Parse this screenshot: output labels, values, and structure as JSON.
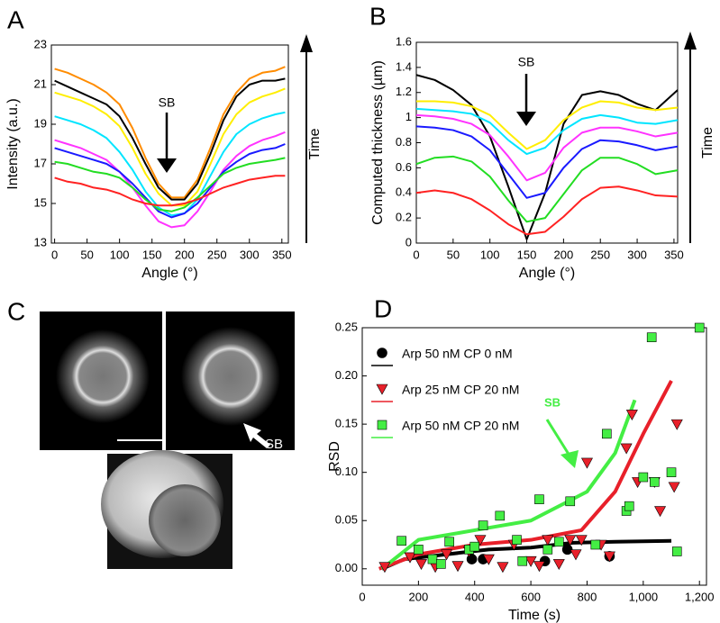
{
  "chart_data": [
    {
      "panel": "A",
      "type": "line",
      "xlabel": "Angle (°)",
      "ylabel": "Intensity (a.u.)",
      "annotation": "SB",
      "side_label": "Time",
      "xlim": [
        -5,
        360
      ],
      "xticks": [
        0,
        50,
        100,
        150,
        200,
        250,
        300,
        350
      ],
      "ylim": [
        13,
        23
      ],
      "yticks": [
        13,
        15,
        17,
        19,
        21,
        23
      ],
      "x": [
        0,
        20,
        40,
        60,
        80,
        100,
        120,
        140,
        160,
        180,
        200,
        220,
        240,
        260,
        280,
        300,
        320,
        340,
        355
      ],
      "series": [
        {
          "color": "#ff8c00",
          "values": [
            21.8,
            21.6,
            21.3,
            21.0,
            20.6,
            20.0,
            18.8,
            17.3,
            16.0,
            15.3,
            15.3,
            16.2,
            17.8,
            19.5,
            20.6,
            21.3,
            21.6,
            21.7,
            21.9
          ]
        },
        {
          "color": "#000000",
          "values": [
            21.2,
            20.9,
            20.6,
            20.3,
            20.0,
            19.4,
            18.3,
            17.0,
            15.8,
            15.2,
            15.2,
            16.0,
            17.5,
            19.2,
            20.4,
            21.0,
            21.2,
            21.2,
            21.3
          ]
        },
        {
          "color": "#ffee00",
          "values": [
            20.6,
            20.4,
            20.2,
            19.9,
            19.5,
            18.9,
            17.8,
            16.5,
            15.5,
            14.9,
            14.9,
            15.6,
            17.0,
            18.5,
            19.5,
            20.1,
            20.4,
            20.6,
            20.8
          ]
        },
        {
          "color": "#00e5ff",
          "values": [
            19.4,
            19.2,
            19.0,
            18.7,
            18.3,
            17.6,
            16.7,
            15.6,
            14.8,
            14.4,
            14.5,
            15.2,
            16.4,
            17.6,
            18.5,
            19.0,
            19.3,
            19.5,
            19.6
          ]
        },
        {
          "color": "#ff33ff",
          "values": [
            18.2,
            18.0,
            17.8,
            17.5,
            17.2,
            16.6,
            15.8,
            14.9,
            14.1,
            13.8,
            13.9,
            14.6,
            15.6,
            16.7,
            17.4,
            17.9,
            18.2,
            18.4,
            18.6
          ]
        },
        {
          "color": "#1a1aff",
          "values": [
            17.8,
            17.6,
            17.4,
            17.2,
            17.0,
            16.6,
            16.0,
            15.3,
            14.6,
            14.3,
            14.5,
            15.0,
            15.8,
            16.6,
            17.1,
            17.5,
            17.7,
            17.8,
            18.0
          ]
        },
        {
          "color": "#22dd22",
          "values": [
            17.1,
            17.0,
            16.8,
            16.6,
            16.5,
            16.3,
            15.8,
            15.2,
            14.7,
            14.6,
            14.8,
            15.3,
            15.9,
            16.5,
            16.8,
            17.0,
            17.1,
            17.2,
            17.3
          ]
        },
        {
          "color": "#ff2222",
          "values": [
            16.3,
            16.1,
            16.0,
            15.8,
            15.7,
            15.5,
            15.2,
            15.0,
            14.9,
            14.9,
            15.0,
            15.2,
            15.5,
            15.8,
            16.0,
            16.2,
            16.3,
            16.4,
            16.4
          ]
        }
      ]
    },
    {
      "panel": "B",
      "type": "line",
      "xlabel": "Angle (°)",
      "ylabel": "Computed thickness (µm)",
      "annotation": "SB",
      "side_label": "Time",
      "xlim": [
        0,
        355
      ],
      "xticks": [
        0,
        50,
        100,
        150,
        200,
        250,
        300,
        350
      ],
      "ylim": [
        0,
        1.6
      ],
      "yticks": [
        0,
        0.2,
        0.4,
        0.6,
        0.8,
        1,
        1.2,
        1.4,
        1.6
      ],
      "x": [
        0,
        25,
        50,
        75,
        100,
        125,
        150,
        175,
        200,
        225,
        250,
        275,
        300,
        325,
        355
      ],
      "series": [
        {
          "color": "#000000",
          "values": [
            1.34,
            1.3,
            1.22,
            1.1,
            0.85,
            0.45,
            0.03,
            0.4,
            0.95,
            1.18,
            1.21,
            1.18,
            1.11,
            1.06,
            1.22
          ]
        },
        {
          "color": "#ffee00",
          "values": [
            1.13,
            1.13,
            1.12,
            1.09,
            1.02,
            0.88,
            0.75,
            0.82,
            0.98,
            1.08,
            1.13,
            1.12,
            1.08,
            1.06,
            1.08
          ]
        },
        {
          "color": "#00e5ff",
          "values": [
            1.07,
            1.06,
            1.05,
            1.03,
            0.96,
            0.82,
            0.71,
            0.76,
            0.9,
            0.99,
            1.02,
            1.0,
            0.96,
            0.95,
            0.98
          ]
        },
        {
          "color": "#ff33ff",
          "values": [
            1.02,
            1.01,
            0.99,
            0.95,
            0.86,
            0.69,
            0.5,
            0.56,
            0.76,
            0.88,
            0.92,
            0.92,
            0.89,
            0.85,
            0.88
          ]
        },
        {
          "color": "#1a1aff",
          "values": [
            0.93,
            0.92,
            0.9,
            0.85,
            0.74,
            0.55,
            0.36,
            0.4,
            0.6,
            0.75,
            0.82,
            0.81,
            0.78,
            0.74,
            0.77
          ]
        },
        {
          "color": "#22dd22",
          "values": [
            0.63,
            0.68,
            0.69,
            0.65,
            0.53,
            0.34,
            0.17,
            0.2,
            0.39,
            0.58,
            0.68,
            0.68,
            0.63,
            0.55,
            0.58
          ]
        },
        {
          "color": "#ff2222",
          "values": [
            0.4,
            0.42,
            0.4,
            0.35,
            0.26,
            0.15,
            0.07,
            0.09,
            0.21,
            0.35,
            0.44,
            0.45,
            0.42,
            0.38,
            0.37
          ]
        }
      ]
    },
    {
      "panel": "D",
      "type": "scatter",
      "xlabel": "Time (s)",
      "ylabel": "RSD",
      "annotation": "SB",
      "legend": "upper left",
      "xlim": [
        0,
        1225
      ],
      "xticks": [
        0,
        200,
        400,
        600,
        800,
        {
          "value": 1000,
          "label": "1,000"
        },
        {
          "value": 1200,
          "label": "1,200"
        }
      ],
      "ylim": [
        -0.017,
        0.25
      ],
      "yticks": [
        {
          "value": 0,
          "label": "0.00"
        },
        {
          "value": 0.05,
          "label": "0.05"
        },
        {
          "value": 0.1,
          "label": "0.10"
        },
        {
          "value": 0.15,
          "label": "0.15"
        },
        {
          "value": 0.2,
          "label": "0.20"
        },
        {
          "value": 0.25,
          "label": "0.25"
        }
      ],
      "series": [
        {
          "name": "Arp 50 nM CP 0 nM",
          "color": "#000000",
          "marker": "circle",
          "x": [
            390,
            430,
            650,
            730,
            880
          ],
          "values": [
            0.01,
            0.01,
            0.008,
            0.02,
            0.013
          ],
          "fit_x": [
            70,
            150,
            300,
            450,
            600,
            750,
            900,
            1100
          ],
          "fit_values": [
            0.0,
            0.01,
            0.015,
            0.02,
            0.022,
            0.027,
            0.028,
            0.029
          ]
        },
        {
          "name": "Arp 25 nM CP 20 nM",
          "color": "#e8202a",
          "marker": "triangle",
          "x": [
            80,
            170,
            210,
            260,
            300,
            340,
            380,
            420,
            450,
            500,
            540,
            600,
            630,
            660,
            700,
            740,
            760,
            780,
            800,
            850,
            880,
            940,
            960,
            980,
            1040,
            1060,
            1110,
            1120
          ],
          "values": [
            0.002,
            0.012,
            0.005,
            0.002,
            0.015,
            0.003,
            0.018,
            0.03,
            0.01,
            0.002,
            0.025,
            0.008,
            0.003,
            0.03,
            0.005,
            0.03,
            0.015,
            0.03,
            0.11,
            0.025,
            0.013,
            0.125,
            0.16,
            0.09,
            0.09,
            0.06,
            0.085,
            0.15
          ],
          "fit_x": [
            60,
            200,
            400,
            600,
            780,
            900,
            1000,
            1100
          ],
          "fit_values": [
            0.0,
            0.015,
            0.025,
            0.03,
            0.04,
            0.08,
            0.14,
            0.195
          ]
        },
        {
          "name": "Arp 50 nM CP 20 nM",
          "color": "#44ee44",
          "marker": "square",
          "x": [
            140,
            200,
            250,
            280,
            310,
            380,
            400,
            430,
            490,
            550,
            570,
            630,
            660,
            700,
            740,
            830,
            870,
            940,
            950,
            1000,
            1030,
            1040,
            1100,
            1120,
            1200
          ],
          "values": [
            0.029,
            0.02,
            0.01,
            0.005,
            0.028,
            0.02,
            0.023,
            0.045,
            0.055,
            0.03,
            0.008,
            0.072,
            0.02,
            0.028,
            0.07,
            0.025,
            0.14,
            0.06,
            0.065,
            0.095,
            0.24,
            0.09,
            0.1,
            0.018,
            0.25
          ],
          "fit_x": [
            70,
            200,
            400,
            600,
            800,
            900,
            970
          ],
          "fit_values": [
            0.0,
            0.03,
            0.04,
            0.05,
            0.08,
            0.12,
            0.175
          ]
        }
      ]
    }
  ],
  "image_panel": {
    "panel": "C",
    "annotation": "SB"
  }
}
